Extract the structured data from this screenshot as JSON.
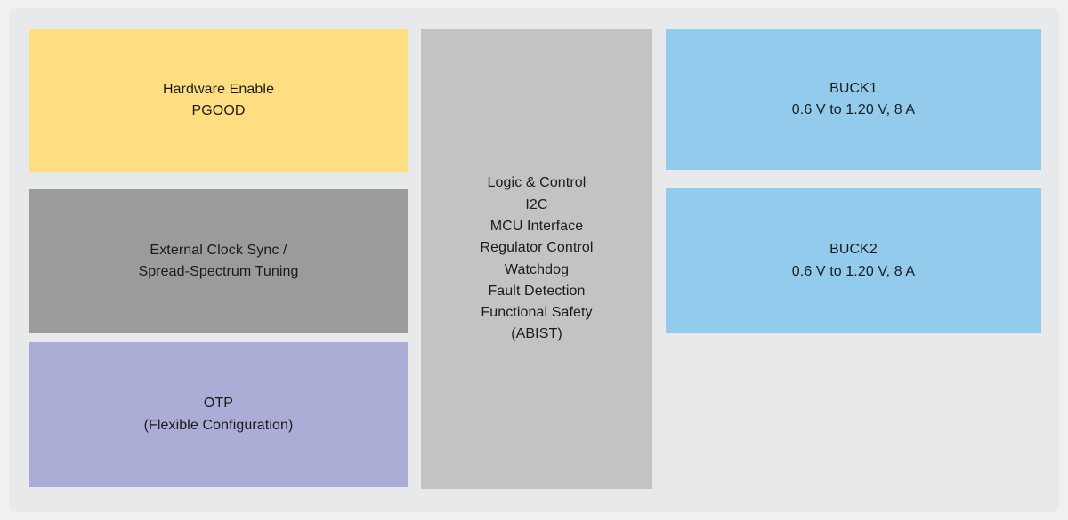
{
  "diagram": {
    "page_background": "#eef0f1",
    "board_background": "#e8e9eb",
    "text_color": "#1b1b1b",
    "blocks": {
      "hw_enable": {
        "color": "#fede81",
        "lines": [
          "Hardware Enable",
          "PGOOD"
        ]
      },
      "clock_sync": {
        "color": "#9a9b9d",
        "lines": [
          "External Clock Sync /",
          "Spread-Spectrum Tuning"
        ]
      },
      "otp": {
        "color": "#abadd6",
        "lines": [
          "OTP",
          "(Flexible Configuration)"
        ]
      },
      "logic": {
        "color": "#c2c3c5",
        "lines": [
          "Logic & Control",
          "I2C",
          "MCU Interface",
          "Regulator Control",
          "Watchdog",
          "Fault Detection",
          "Functional Safety",
          "(ABIST)"
        ]
      },
      "buck1": {
        "color": "#93cbec",
        "lines": [
          "BUCK1",
          "0.6 V to 1.20 V, 8 A"
        ]
      },
      "buck2": {
        "color": "#93cbec",
        "lines": [
          "BUCK2",
          "0.6 V to 1.20 V, 8 A"
        ]
      }
    }
  }
}
